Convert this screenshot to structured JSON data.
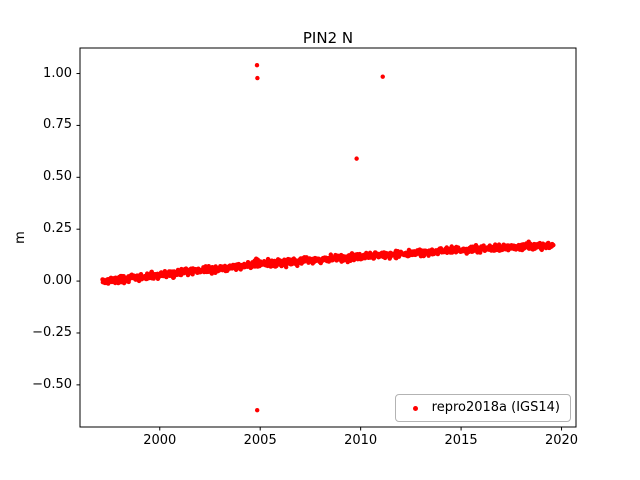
{
  "figure": {
    "background": "#ffffff"
  },
  "chart_data": {
    "type": "scatter",
    "title": "PIN2 N",
    "xlabel": "",
    "ylabel": "m",
    "xlim": [
      1996.03,
      2020.72
    ],
    "ylim": [
      -0.703,
      1.123
    ],
    "grid": false,
    "xticks": {
      "values": [
        2000,
        2005,
        2010,
        2015,
        2020
      ],
      "labels": [
        "2000",
        "2005",
        "2010",
        "2015",
        "2020"
      ]
    },
    "yticks": {
      "values": [
        -0.5,
        -0.25,
        0.0,
        0.25,
        0.5,
        0.75,
        1.0
      ],
      "labels": [
        "−0.50",
        "−0.25",
        "0.00",
        "0.25",
        "0.50",
        "0.75",
        "1.00"
      ]
    },
    "legend": {
      "label": "repro2018a (IGS14)",
      "position": "lower right",
      "marker": "dot",
      "marker_color": "#ff0000",
      "border_color": "#b3b3b3",
      "background": "#ffffff"
    },
    "series": [
      {
        "name": "repro2018a (IGS14)",
        "color": "#ff0000",
        "marker_radius_px": 2.2,
        "x_start": 1997.15,
        "x_end": 2019.6,
        "step_years": 0.019165,
        "noise_std": 0.008,
        "seed": 42,
        "trend_points": [
          [
            1997.15,
            0.0
          ],
          [
            1998.5,
            0.012
          ],
          [
            2000.0,
            0.027
          ],
          [
            2000.3,
            0.035
          ],
          [
            2002.0,
            0.05
          ],
          [
            2005.0,
            0.082
          ],
          [
            2007.5,
            0.1
          ],
          [
            2010.0,
            0.118
          ],
          [
            2012.5,
            0.133
          ],
          [
            2015.0,
            0.15
          ],
          [
            2017.5,
            0.162
          ],
          [
            2019.6,
            0.172
          ]
        ],
        "extra_points": [
          [
            2004.75,
            0.1
          ],
          [
            2004.8,
            0.108
          ],
          [
            2004.88,
            0.103
          ],
          [
            2000.65,
            0.02
          ],
          [
            2000.7,
            0.018
          ]
        ],
        "outliers": [
          [
            2004.84,
            1.04
          ],
          [
            2004.86,
            0.978
          ],
          [
            2011.1,
            0.985
          ],
          [
            2009.8,
            0.59
          ],
          [
            2004.85,
            -0.622
          ]
        ]
      }
    ]
  }
}
